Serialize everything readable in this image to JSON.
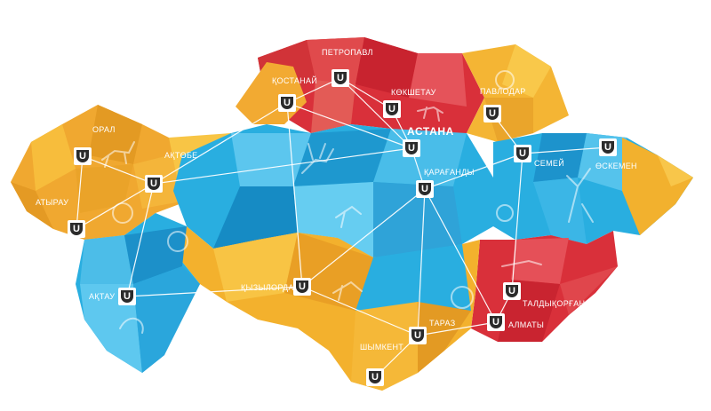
{
  "map": {
    "region_colors": {
      "west": "#f0a830",
      "north": "#d9303a",
      "center": "#29aee0",
      "south": "#f3b12d",
      "east": "#ebb02e",
      "southeast": "#d9303a"
    },
    "marker_letter": "U",
    "cities": [
      {
        "id": "petropavl",
        "name": "ПЕТРОПАВЛ"
      },
      {
        "id": "kostanai",
        "name": "ҚОСТАНАЙ"
      },
      {
        "id": "kokshetau",
        "name": "КӨКШЕТАУ"
      },
      {
        "id": "pavlodar",
        "name": "ПАВЛОДАР"
      },
      {
        "id": "astana",
        "name": "АСТАНА"
      },
      {
        "id": "karagandy",
        "name": "ҚАРАҒАНДЫ"
      },
      {
        "id": "semei",
        "name": "СЕМЕЙ"
      },
      {
        "id": "oskemen",
        "name": "ӨСКЕМЕН"
      },
      {
        "id": "oral",
        "name": "ОРАЛ"
      },
      {
        "id": "aktobe",
        "name": "АҚТӨБЕ"
      },
      {
        "id": "atyrau",
        "name": "АТЫРАУ"
      },
      {
        "id": "aktau",
        "name": "АҚТАУ"
      },
      {
        "id": "kyzylorda",
        "name": "ҚЫЗЫЛОРДА"
      },
      {
        "id": "shymkent",
        "name": "ШЫМКЕНТ"
      },
      {
        "id": "taraz",
        "name": "ТАРАЗ"
      },
      {
        "id": "almaty",
        "name": "АЛМАТЫ"
      },
      {
        "id": "taldykorgan",
        "name": "ТАЛДЫҚОРҒАН"
      }
    ]
  }
}
